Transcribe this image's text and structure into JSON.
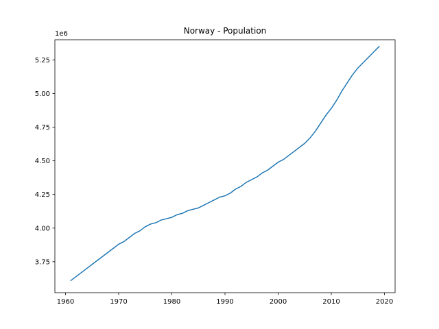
{
  "chart_data": {
    "type": "line",
    "title": "Norway - Population",
    "xlabel": "",
    "ylabel": "",
    "y_offset_label": "1e6",
    "xlim": [
      1958,
      2022
    ],
    "ylim": [
      3.52,
      5.4
    ],
    "y_scale_factor": 1000000,
    "x_ticks": [
      1960,
      1970,
      1980,
      1990,
      2000,
      2010,
      2020
    ],
    "x_tick_labels": [
      "1960",
      "1970",
      "1980",
      "1990",
      "2000",
      "2010",
      "2020"
    ],
    "y_ticks": [
      3.75,
      4.0,
      4.25,
      4.5,
      4.75,
      5.0,
      5.25
    ],
    "y_tick_labels": [
      "3.75",
      "4.00",
      "4.25",
      "4.50",
      "4.75",
      "5.00",
      "5.25"
    ],
    "grid": false,
    "series": [
      {
        "color": "#1f77b4",
        "x": [
          1961,
          1962,
          1963,
          1964,
          1965,
          1966,
          1967,
          1968,
          1969,
          1970,
          1971,
          1972,
          1973,
          1974,
          1975,
          1976,
          1977,
          1978,
          1979,
          1980,
          1981,
          1982,
          1983,
          1984,
          1985,
          1986,
          1987,
          1988,
          1989,
          1990,
          1991,
          1992,
          1993,
          1994,
          1995,
          1996,
          1997,
          1998,
          1999,
          2000,
          2001,
          2002,
          2003,
          2004,
          2005,
          2006,
          2007,
          2008,
          2009,
          2010,
          2011,
          2012,
          2013,
          2014,
          2015,
          2016,
          2017,
          2018,
          2019
        ],
        "y": [
          3.61,
          3.64,
          3.67,
          3.7,
          3.73,
          3.76,
          3.79,
          3.82,
          3.85,
          3.88,
          3.9,
          3.93,
          3.96,
          3.98,
          4.01,
          4.03,
          4.04,
          4.06,
          4.07,
          4.08,
          4.1,
          4.11,
          4.13,
          4.14,
          4.15,
          4.17,
          4.19,
          4.21,
          4.23,
          4.24,
          4.26,
          4.29,
          4.31,
          4.34,
          4.36,
          4.38,
          4.41,
          4.43,
          4.46,
          4.49,
          4.51,
          4.54,
          4.57,
          4.6,
          4.63,
          4.67,
          4.72,
          4.78,
          4.84,
          4.89,
          4.95,
          5.02,
          5.08,
          5.14,
          5.19,
          5.23,
          5.27,
          5.31,
          5.35
        ]
      }
    ]
  }
}
